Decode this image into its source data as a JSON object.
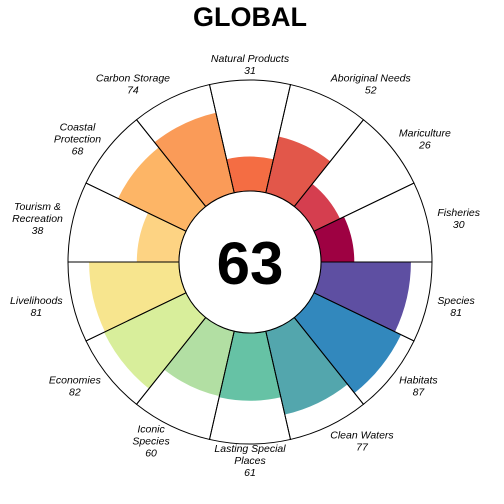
{
  "chart_data": {
    "type": "flower",
    "title": "GLOBAL",
    "center_score": "63",
    "ylim": [
      0,
      100
    ],
    "petals": [
      {
        "label": [
          "Species"
        ],
        "value": 81,
        "color": "#5E4FA2"
      },
      {
        "label": [
          "Habitats"
        ],
        "value": 87,
        "color": "#3288BD"
      },
      {
        "label": [
          "Clean Waters"
        ],
        "value": 77,
        "color": "#53A6AD"
      },
      {
        "label": [
          "Lasting Special",
          "Places"
        ],
        "value": 61,
        "color": "#66C2A5"
      },
      {
        "label": [
          "Iconic",
          "Species"
        ],
        "value": 60,
        "color": "#B2DFA3"
      },
      {
        "label": [
          "Economies"
        ],
        "value": 82,
        "color": "#D8EE9B"
      },
      {
        "label": [
          "Livelihoods"
        ],
        "value": 81,
        "color": "#F7E58E"
      },
      {
        "label": [
          "Tourism &",
          "Recreation"
        ],
        "value": 38,
        "color": "#FDD383"
      },
      {
        "label": [
          "Coastal",
          "Protection"
        ],
        "value": 68,
        "color": "#FDB566"
      },
      {
        "label": [
          "Carbon Storage"
        ],
        "value": 74,
        "color": "#FA9B58"
      },
      {
        "label": [
          "Natural Products"
        ],
        "value": 31,
        "color": "#F46D43"
      },
      {
        "label": [
          "Aboriginal Needs"
        ],
        "value": 52,
        "color": "#E2574A"
      },
      {
        "label": [
          "Mariculture"
        ],
        "value": 26,
        "color": "#D53E4F"
      },
      {
        "label": [
          "Fisheries"
        ],
        "value": 30,
        "color": "#9E0142"
      }
    ]
  }
}
